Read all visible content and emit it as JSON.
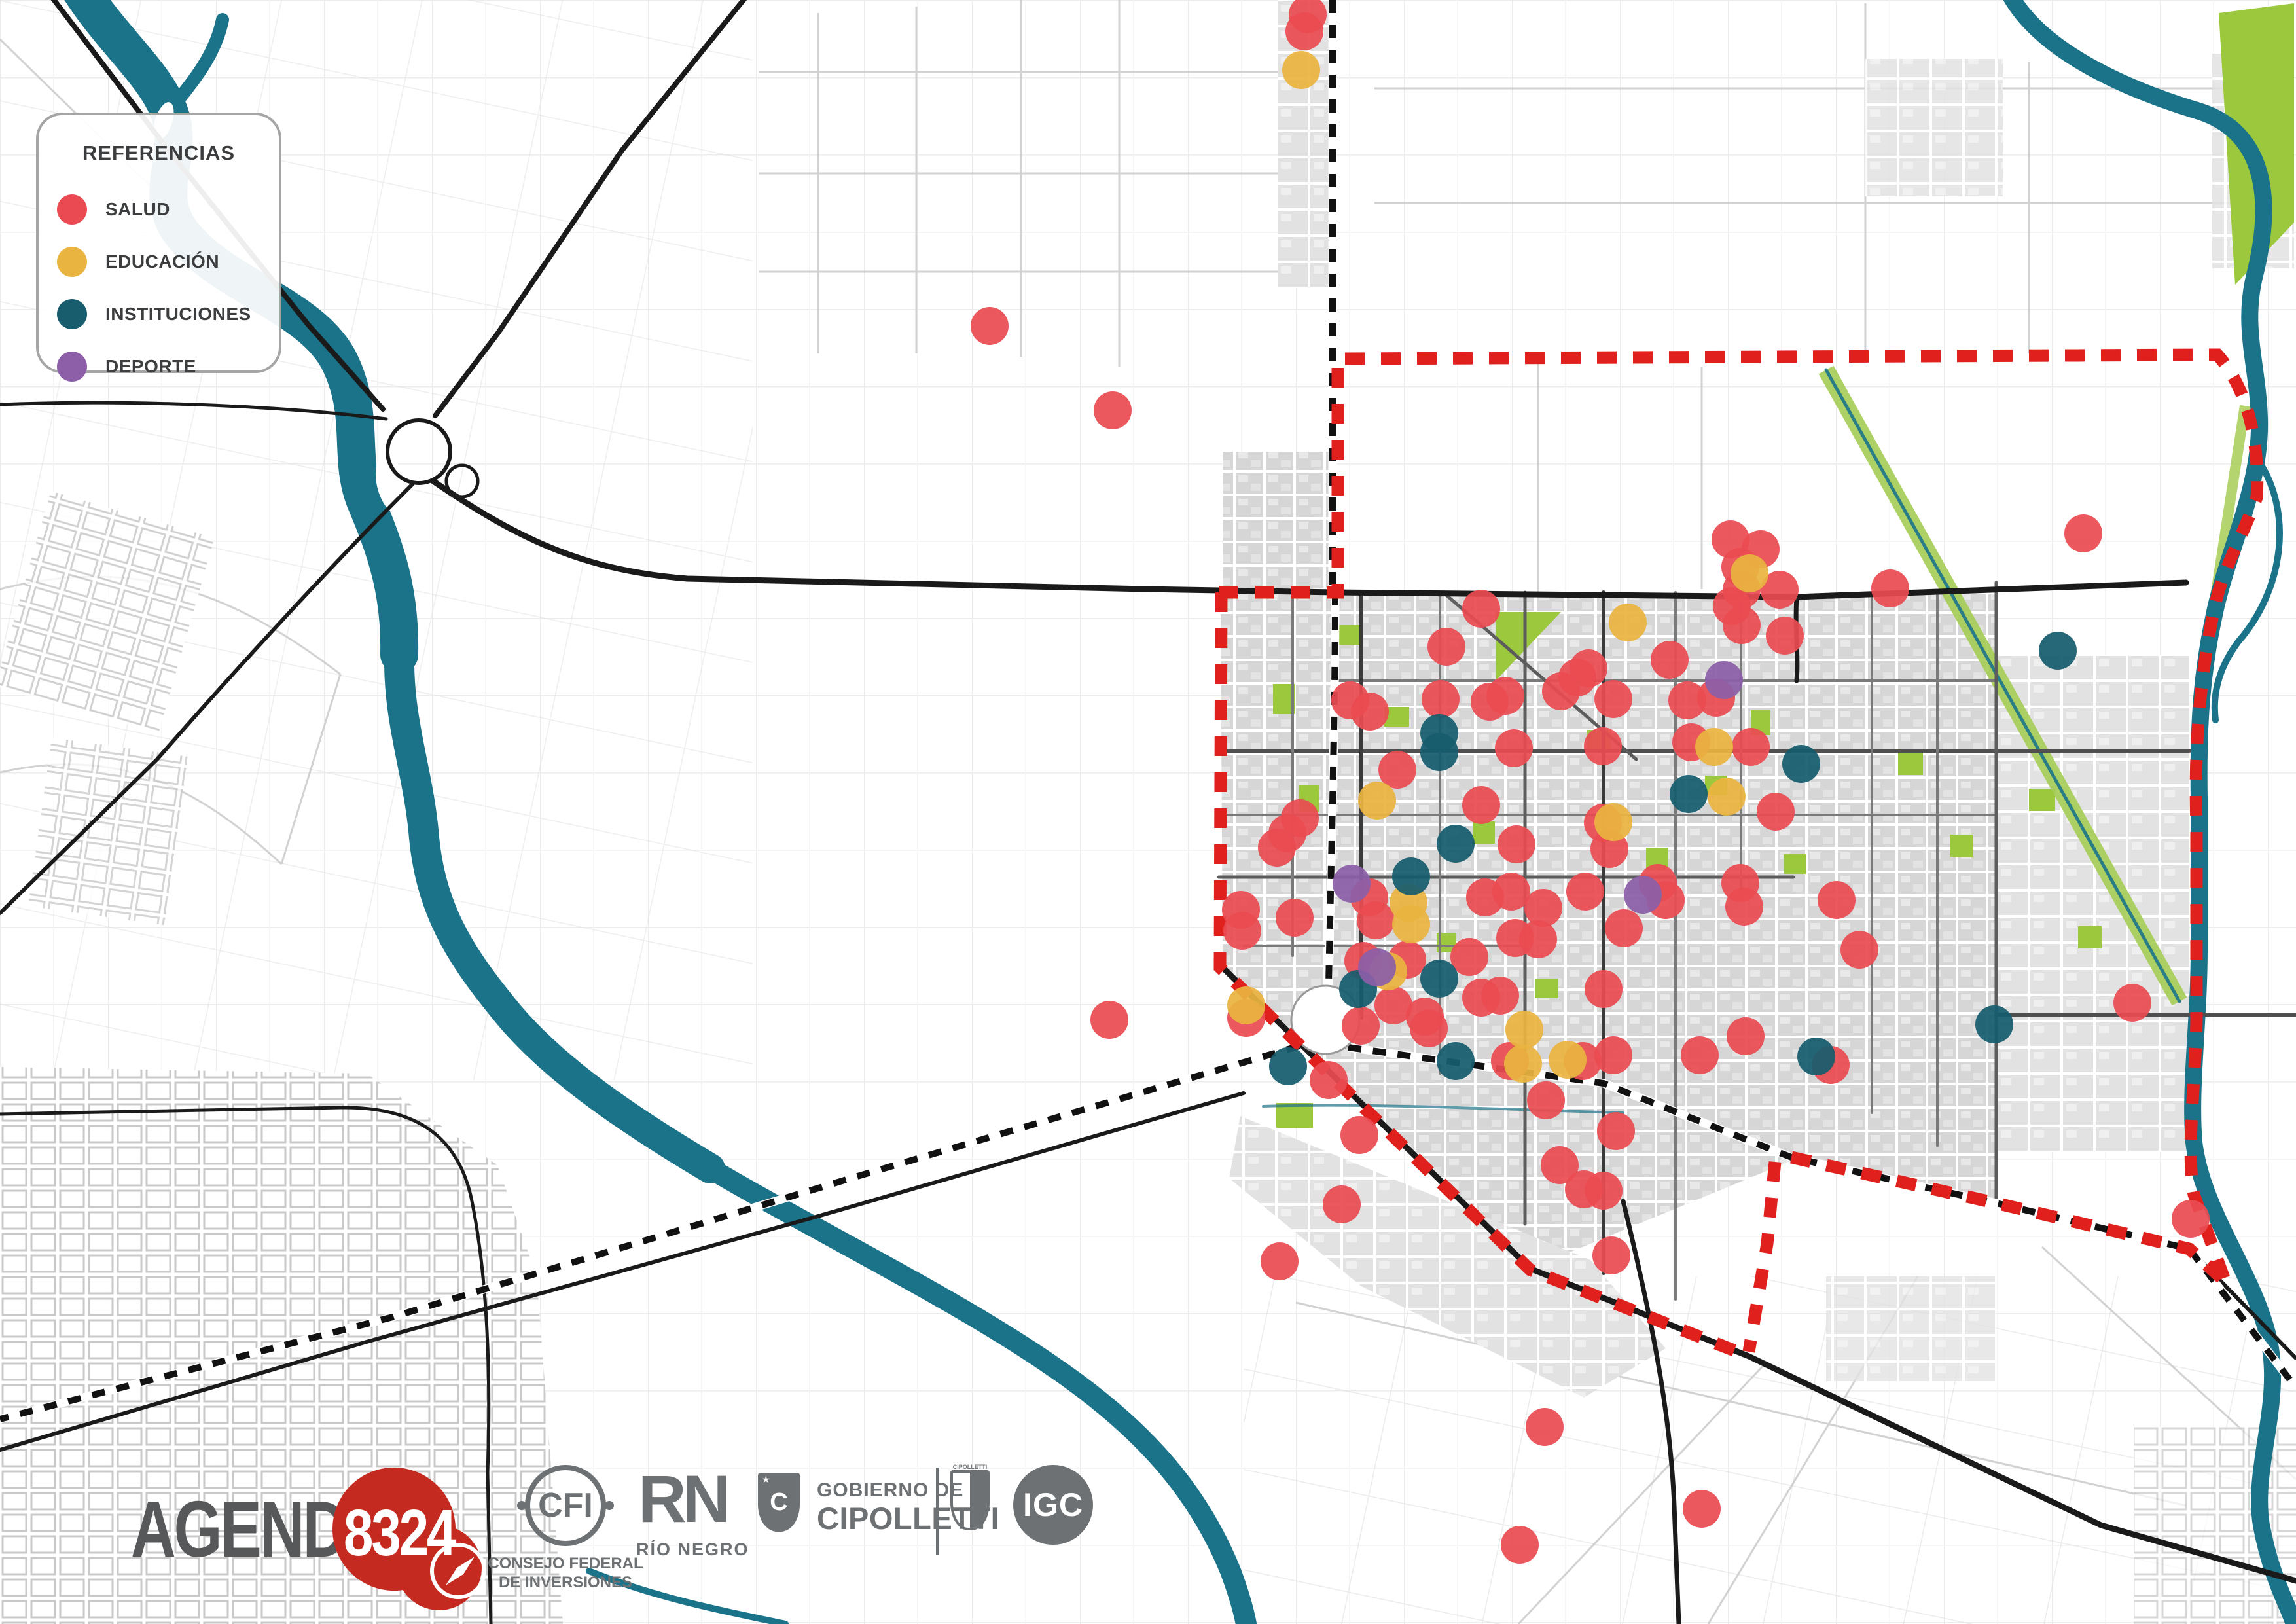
{
  "legend": {
    "title": "REFERENCIAS",
    "items": [
      {
        "key": "salud",
        "label": "SALUD",
        "color": "#EA4B52"
      },
      {
        "key": "educacion",
        "label": "EDUCACIÓN",
        "color": "#EAB440"
      },
      {
        "key": "instituciones",
        "label": "INSTITUCIONES",
        "color": "#175D6E"
      },
      {
        "key": "deporte",
        "label": "DEPORTE",
        "color": "#8C5FA8"
      }
    ]
  },
  "theme": {
    "river": "#1B7389",
    "boundary": "#E0201C",
    "park_green": "#9CC83E",
    "road_black": "#1A1A1A",
    "logo_gray": "#6d7173",
    "agenda_red": "#C42A20"
  },
  "footer": {
    "agenda_text": "AGENDA",
    "agenda_number": "8324",
    "cfi_abbr": "CFI",
    "cfi_caption_line1": "CONSEJO FEDERAL",
    "cfi_caption_line2": "DE INVERSIONES",
    "rn_abbr": "RN",
    "rn_caption": "RÍO NEGRO",
    "gobierno_line1": "GOBIERNO DE",
    "gobierno_line2": "CIPOLLETTI",
    "crest_label": "CIPOLLETTI",
    "igc_abbr": "IGC"
  },
  "map": {
    "marker_radius": 29,
    "markers": [
      {
        "category": "salud",
        "color": "#EA4B52",
        "points": [
          [
            1998,
            22
          ],
          [
            1993,
            48
          ],
          [
            1512,
            498
          ],
          [
            1700,
            627
          ],
          [
            3183,
            815
          ],
          [
            2644,
            824
          ],
          [
            2690,
            839
          ],
          [
            2659,
            866
          ],
          [
            2661,
            901
          ],
          [
            2719,
            901
          ],
          [
            2646,
            926
          ],
          [
            2661,
            955
          ],
          [
            2727,
            971
          ],
          [
            2888,
            899
          ],
          [
            2263,
            930
          ],
          [
            2210,
            988
          ],
          [
            2201,
            1068
          ],
          [
            2276,
            1072
          ],
          [
            2300,
            1063
          ],
          [
            2385,
            1056
          ],
          [
            2410,
            1035
          ],
          [
            2427,
            1021
          ],
          [
            2063,
            1070
          ],
          [
            2093,
            1087
          ],
          [
            2135,
            1176
          ],
          [
            2313,
            1143
          ],
          [
            2263,
            1230
          ],
          [
            2317,
            1290
          ],
          [
            2551,
            1008
          ],
          [
            2578,
            1070
          ],
          [
            2622,
            1066
          ],
          [
            2465,
            1068
          ],
          [
            2584,
            1134
          ],
          [
            2675,
            1141
          ],
          [
            2449,
            1140
          ],
          [
            2713,
            1240
          ],
          [
            2449,
            1257
          ],
          [
            2459,
            1297
          ],
          [
            1986,
            1250
          ],
          [
            1967,
            1273
          ],
          [
            1951,
            1295
          ],
          [
            2533,
            1349
          ],
          [
            2659,
            1349
          ],
          [
            2545,
            1375
          ],
          [
            2481,
            1418
          ],
          [
            2665,
            1385
          ],
          [
            2806,
            1375
          ],
          [
            2841,
            1451
          ],
          [
            1896,
            1390
          ],
          [
            1898,
            1422
          ],
          [
            1978,
            1402
          ],
          [
            2092,
            1371
          ],
          [
            2102,
            1406
          ],
          [
            2269,
            1371
          ],
          [
            2309,
            1362
          ],
          [
            2358,
            1387
          ],
          [
            2315,
            1433
          ],
          [
            2350,
            1435
          ],
          [
            2422,
            1362
          ],
          [
            2083,
            1468
          ],
          [
            2150,
            1466
          ],
          [
            2245,
            1462
          ],
          [
            2263,
            1524
          ],
          [
            2292,
            1521
          ],
          [
            1904,
            1555
          ],
          [
            2129,
            1536
          ],
          [
            2177,
            1553
          ],
          [
            2183,
            1571
          ],
          [
            2079,
            1567
          ],
          [
            2450,
            1511
          ],
          [
            2307,
            1621
          ],
          [
            2418,
            1621
          ],
          [
            2030,
            1650
          ],
          [
            2362,
            1681
          ],
          [
            2465,
            1612
          ],
          [
            2597,
            1612
          ],
          [
            2667,
            1583
          ],
          [
            2797,
            1627
          ],
          [
            2077,
            1734
          ],
          [
            2383,
            1780
          ],
          [
            2050,
            1840
          ],
          [
            1955,
            1927
          ],
          [
            2420,
            1817
          ],
          [
            2469,
            1728
          ],
          [
            2450,
            1819
          ],
          [
            2462,
            1918
          ],
          [
            3258,
            1532
          ],
          [
            3347,
            1862
          ],
          [
            1695,
            1558
          ],
          [
            2360,
            2180
          ],
          [
            2600,
            2305
          ],
          [
            2322,
            2360
          ]
        ]
      },
      {
        "category": "educacion",
        "color": "#EAB440",
        "points": [
          [
            1988,
            107
          ],
          [
            2673,
            876
          ],
          [
            2487,
            951
          ],
          [
            2104,
            1223
          ],
          [
            2619,
            1141
          ],
          [
            2638,
            1217
          ],
          [
            2465,
            1256
          ],
          [
            1904,
            1536
          ],
          [
            2152,
            1379
          ],
          [
            2156,
            1412
          ],
          [
            2121,
            1484
          ],
          [
            2329,
            1573
          ],
          [
            2327,
            1625
          ],
          [
            2395,
            1619
          ]
        ]
      },
      {
        "category": "instituciones",
        "color": "#175D6E",
        "points": [
          [
            2199,
            1120
          ],
          [
            2199,
            1149
          ],
          [
            2224,
            1289
          ],
          [
            2156,
            1339
          ],
          [
            2752,
            1167
          ],
          [
            2580,
            1213
          ],
          [
            3144,
            994
          ],
          [
            3047,
            1565
          ],
          [
            2199,
            1495
          ],
          [
            2075,
            1511
          ],
          [
            1968,
            1629
          ],
          [
            2224,
            1621
          ],
          [
            2775,
            1614
          ]
        ]
      },
      {
        "category": "deporte",
        "color": "#8C5FA8",
        "points": [
          [
            2634,
            1039
          ],
          [
            2065,
            1350
          ],
          [
            2510,
            1367
          ],
          [
            2104,
            1478
          ]
        ]
      }
    ]
  }
}
